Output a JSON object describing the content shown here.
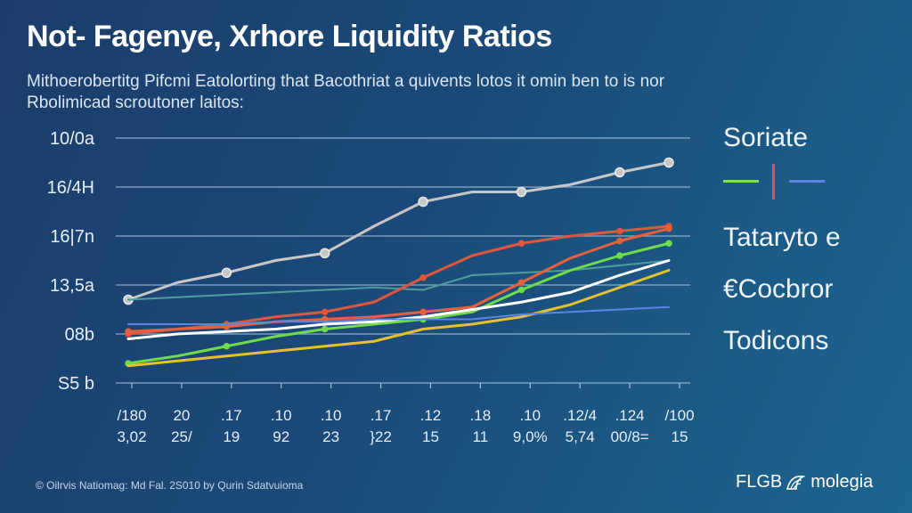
{
  "header": {
    "title": "Not- Fagenye, Xrhore Liquidity Ratios",
    "subtitle_line1": "Mithoerobertitg Pifcmi Eatolorting that Bacothriat a quivents lotos it omin ben to is nor",
    "subtitle_line2": "Rbolimicad scroutoner laitos:"
  },
  "legend": {
    "title": "Soriate",
    "items": [
      "Tataryto e",
      "€Cocbror",
      "Todicons"
    ],
    "swatch_colors": [
      "#7be04a",
      "#e0573d",
      "#5b84e6"
    ]
  },
  "footer": {
    "copyright": "© Oilrvis Natiomag: Md Fal. 2S010 by Qurin Sdatvuioma",
    "brand_left": "FLGB",
    "brand_right": "molegia",
    "brand_icon": "shell-logo-icon"
  },
  "chart_data": {
    "type": "line",
    "title": "Not- Fagenye, Xrhore Liquidity Ratios",
    "xlabel": "",
    "ylabel": "",
    "y_tick_labels": [
      "S5 b",
      "08b",
      "13,5a",
      "16|7n",
      "16/4H",
      "10/0a"
    ],
    "x_tick_labels_top": [
      "/180",
      "20",
      ".17",
      ".10",
      ".10",
      ".17",
      ".12",
      ".18",
      ".10",
      ".12/4",
      ".124",
      "/100"
    ],
    "x_tick_labels_bottom": [
      "3,02",
      "25/",
      "19",
      "92",
      "23",
      "}22",
      "15",
      "11",
      "9,0%",
      "5,74",
      "00/8=",
      "15"
    ],
    "ylim": [
      0,
      100
    ],
    "grid": true,
    "legend_position": "right",
    "x": [
      0,
      1,
      2,
      3,
      4,
      5,
      6,
      7,
      8,
      9,
      10,
      11
    ],
    "series": [
      {
        "name": "gray",
        "color": "#c7c7c7",
        "markers": true,
        "values": [
          34,
          41,
          45,
          50,
          53,
          64,
          74,
          78,
          78,
          81,
          86,
          90
        ]
      },
      {
        "name": "teal",
        "color": "#4f9c9e",
        "markers": false,
        "values": [
          34,
          35,
          36,
          37,
          38,
          39,
          38,
          44,
          45,
          46,
          48,
          50
        ]
      },
      {
        "name": "red-upper",
        "color": "#e0573d",
        "markers": true,
        "values": [
          20,
          22,
          24,
          27,
          29,
          33,
          43,
          52,
          57,
          60,
          62,
          64
        ]
      },
      {
        "name": "red-lower",
        "color": "#e8613a",
        "markers": true,
        "values": [
          21,
          22,
          23,
          25,
          26,
          27,
          29,
          31,
          41,
          51,
          58,
          63
        ]
      },
      {
        "name": "green",
        "color": "#6fdc4a",
        "markers": true,
        "values": [
          8,
          11,
          15,
          19,
          22,
          24,
          26,
          29,
          38,
          46,
          52,
          57
        ]
      },
      {
        "name": "white",
        "color": "#ffffff",
        "markers": false,
        "values": [
          18,
          20,
          21,
          22,
          24,
          25,
          27,
          30,
          33,
          37,
          44,
          50
        ]
      },
      {
        "name": "yellow",
        "color": "#e7c12a",
        "markers": false,
        "values": [
          7,
          9,
          11,
          13,
          15,
          17,
          22,
          24,
          27,
          32,
          39,
          46
        ]
      },
      {
        "name": "blue",
        "color": "#5b84e6",
        "markers": false,
        "values": [
          24,
          24,
          24,
          25,
          25,
          26,
          26,
          26,
          28,
          29,
          30,
          31
        ]
      }
    ]
  }
}
